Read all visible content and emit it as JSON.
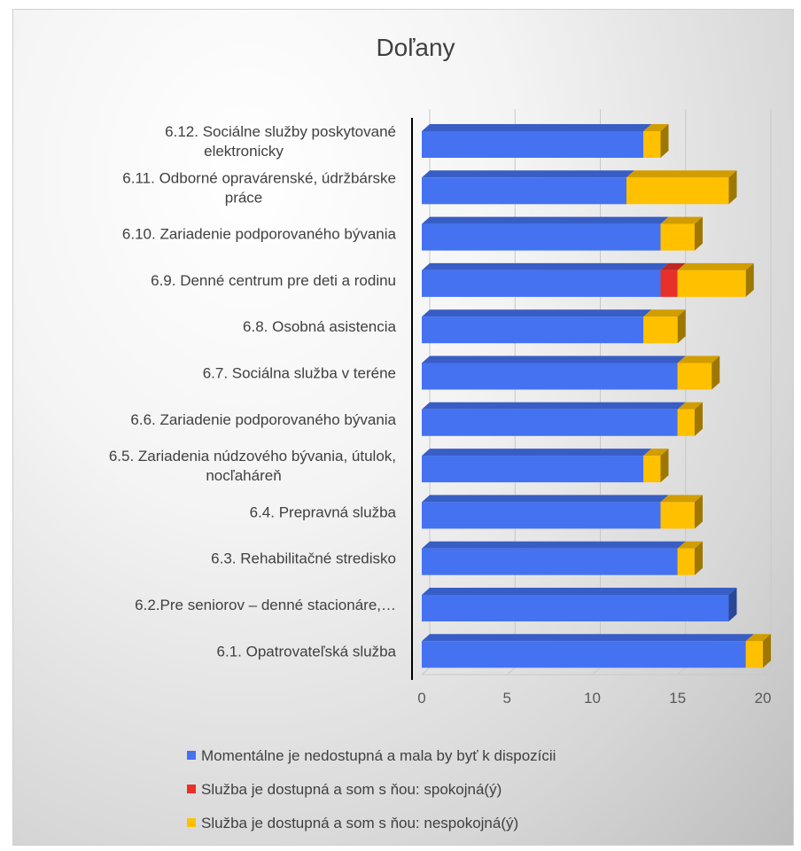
{
  "chart_data": {
    "type": "bar",
    "orientation": "horizontal",
    "stacked": true,
    "title": "Doľany",
    "categories": [
      [
        "6.12. Sociálne služby poskytované",
        "elektronicky"
      ],
      [
        "6.11. Odborné opravárenské, údržbárske",
        "práce"
      ],
      [
        "6.10. Zariadenie podporovaného bývania"
      ],
      [
        "6.9. Denné centrum pre deti a rodinu"
      ],
      [
        "6.8. Osobná asistencia"
      ],
      [
        "6.7. Sociálna služba v teréne"
      ],
      [
        "6.6. Zariadenie podporovaného bývania"
      ],
      [
        "6.5. Zariadenia núdzového bývania, útulok,",
        "nocľaháreň"
      ],
      [
        "6.4. Prepravná služba"
      ],
      [
        "6.3. Rehabilitačné stredisko"
      ],
      [
        "6.2.Pre seniorov – denné stacionáre,…"
      ],
      [
        "6.1. Opatrovateľská služba"
      ]
    ],
    "series": [
      {
        "name": "Momentálne je nedostupná a mala by byť k dispozícii",
        "color": "#4472F0",
        "values": [
          13,
          12,
          14,
          14,
          13,
          15,
          15,
          13,
          14,
          15,
          18,
          19
        ]
      },
      {
        "name": "Služba je dostupná a som s ňou: spokojná(ý)",
        "color": "#E8302A",
        "values": [
          0,
          0,
          0,
          1,
          0,
          0,
          0,
          0,
          0,
          0,
          0,
          0
        ]
      },
      {
        "name": "Služba je dostupná a som s ňou: nespokojná(ý)",
        "color": "#FFC000",
        "values": [
          1,
          6,
          2,
          4,
          2,
          2,
          1,
          1,
          2,
          1,
          0,
          1
        ]
      }
    ],
    "xlim": [
      0,
      20
    ],
    "ticks": [
      0,
      5,
      10,
      15,
      20
    ],
    "grid": true,
    "legend_position": "bottom"
  }
}
